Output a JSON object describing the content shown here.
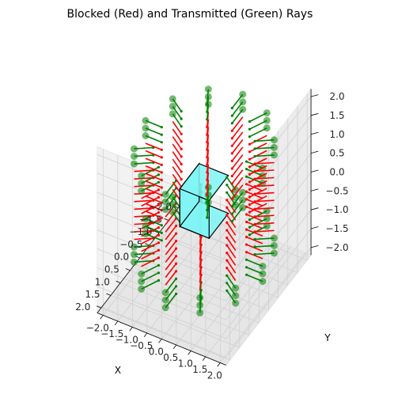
{
  "chart_data": {
    "type": "scatter",
    "projection": "3d",
    "title": "Blocked (Red) and Transmitted (Green) Rays",
    "xlabel": "X",
    "ylabel": "Y",
    "zlabel": "",
    "xlim": [
      -2.2,
      2.2
    ],
    "ylim": [
      -2.2,
      2.2
    ],
    "zlim": [
      -2.2,
      2.2
    ],
    "grid": true,
    "ticks": {
      "x": [
        "−2.0",
        "−1.5",
        "−1.0",
        "−0.5",
        "0.0",
        "0.5",
        "1.0",
        "1.5",
        "2.0"
      ],
      "y": [
        "−2.0",
        "−1.5",
        "−1.0",
        "−0.5",
        "0.0",
        "0.5",
        "1.0",
        "1.5",
        "2.0"
      ],
      "z": [
        "−2.0",
        "−1.5",
        "−1.0",
        "−0.5",
        "0.0",
        "0.5",
        "1.0",
        "1.5",
        "2.0"
      ],
      "values": [
        -2.0,
        -1.5,
        -1.0,
        -0.5,
        0.0,
        0.5,
        1.0,
        1.5,
        2.0
      ]
    },
    "box": {
      "x": [
        -0.5,
        0.5
      ],
      "y": [
        -0.5,
        0.5
      ],
      "z": [
        -0.5,
        0.5
      ],
      "face_color": "#7ff5f5",
      "edge_color": "#000000"
    },
    "sources": {
      "radius": 2.0,
      "angles_deg": [
        0,
        30,
        60,
        90,
        120,
        150,
        180,
        210,
        240,
        270,
        300,
        330
      ],
      "z_range": [
        -1.5,
        1.5
      ],
      "rays_per_source": 16,
      "ray_length": 0.55
    },
    "series": [
      {
        "name": "Blocked",
        "color": "#ff0000",
        "z_range": [
          -0.9,
          0.9
        ]
      },
      {
        "name": "Transmitted",
        "color": "#008000"
      }
    ]
  }
}
